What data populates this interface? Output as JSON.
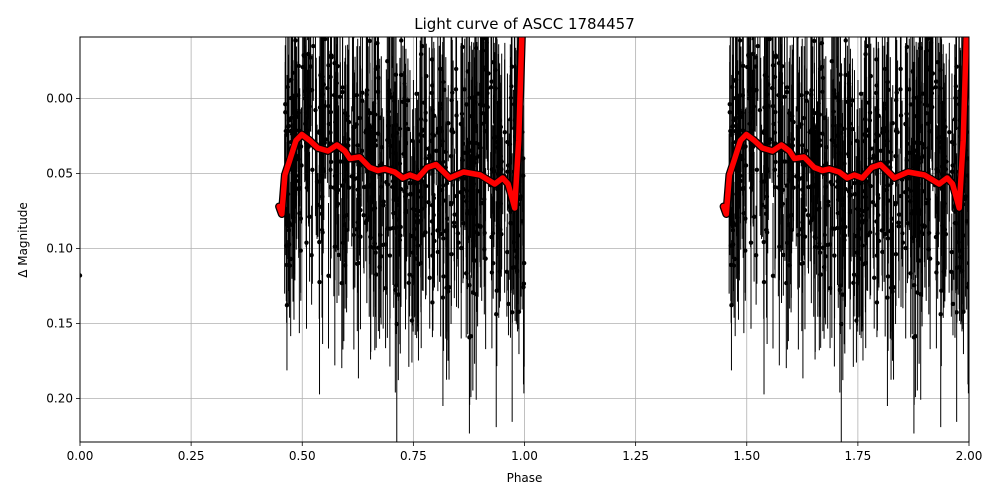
{
  "chart_data": {
    "type": "scatter",
    "title": "Light curve of ASCC 1784457",
    "xlabel": "Phase",
    "ylabel": "Δ Magnitude",
    "xlim": [
      0.0,
      2.0
    ],
    "ylim": [
      0.229,
      -0.041
    ],
    "y_inverted": true,
    "grid": true,
    "x_ticks": [
      "0.00",
      "0.25",
      "0.50",
      "0.75",
      "1.00",
      "1.25",
      "1.50",
      "1.75",
      "2.00"
    ],
    "x_tick_values": [
      0.0,
      0.25,
      0.5,
      0.75,
      1.0,
      1.25,
      1.5,
      1.75,
      2.0
    ],
    "y_ticks": [
      "0.00",
      "0.05",
      "0.10",
      "0.15",
      "0.20"
    ],
    "y_tick_values": [
      0.0,
      0.05,
      0.1,
      0.15,
      0.2
    ],
    "series": [
      {
        "name": "observations (with error bars)",
        "color": "#000000",
        "marker": "circle",
        "description": "Dense cloud of phase-folded points between phase ~0.46-1.00 (and repeated 1.46-2.00), magnitudes roughly -0.04 to 0.23 with large vertical error bars; one isolated point at phase 0.00",
        "isolated_points": [
          {
            "x": 0.0,
            "y": 0.118,
            "err_low": 0.063,
            "err_high": 0.172
          }
        ],
        "phase_range": [
          0.46,
          1.0
        ],
        "mag_spread": [
          -0.04,
          0.23
        ]
      },
      {
        "name": "binned / smoothed curve",
        "color": "#ff0000",
        "outline": "#000000",
        "x": [
          0.448,
          0.454,
          0.461,
          0.472,
          0.486,
          0.499,
          0.517,
          0.535,
          0.558,
          0.578,
          0.596,
          0.607,
          0.629,
          0.652,
          0.67,
          0.686,
          0.708,
          0.726,
          0.742,
          0.76,
          0.781,
          0.801,
          0.832,
          0.863,
          0.9,
          0.933,
          0.951,
          0.963,
          0.978,
          0.987,
          0.994
        ],
        "y": [
          0.072,
          0.077,
          0.051,
          0.041,
          0.028,
          0.024,
          0.028,
          0.033,
          0.035,
          0.031,
          0.035,
          0.04,
          0.039,
          0.046,
          0.048,
          0.047,
          0.049,
          0.053,
          0.051,
          0.053,
          0.046,
          0.044,
          0.053,
          0.049,
          0.051,
          0.057,
          0.053,
          0.057,
          0.073,
          0.028,
          -0.041
        ],
        "repeated_at_phase_offset": 1.0
      }
    ]
  }
}
